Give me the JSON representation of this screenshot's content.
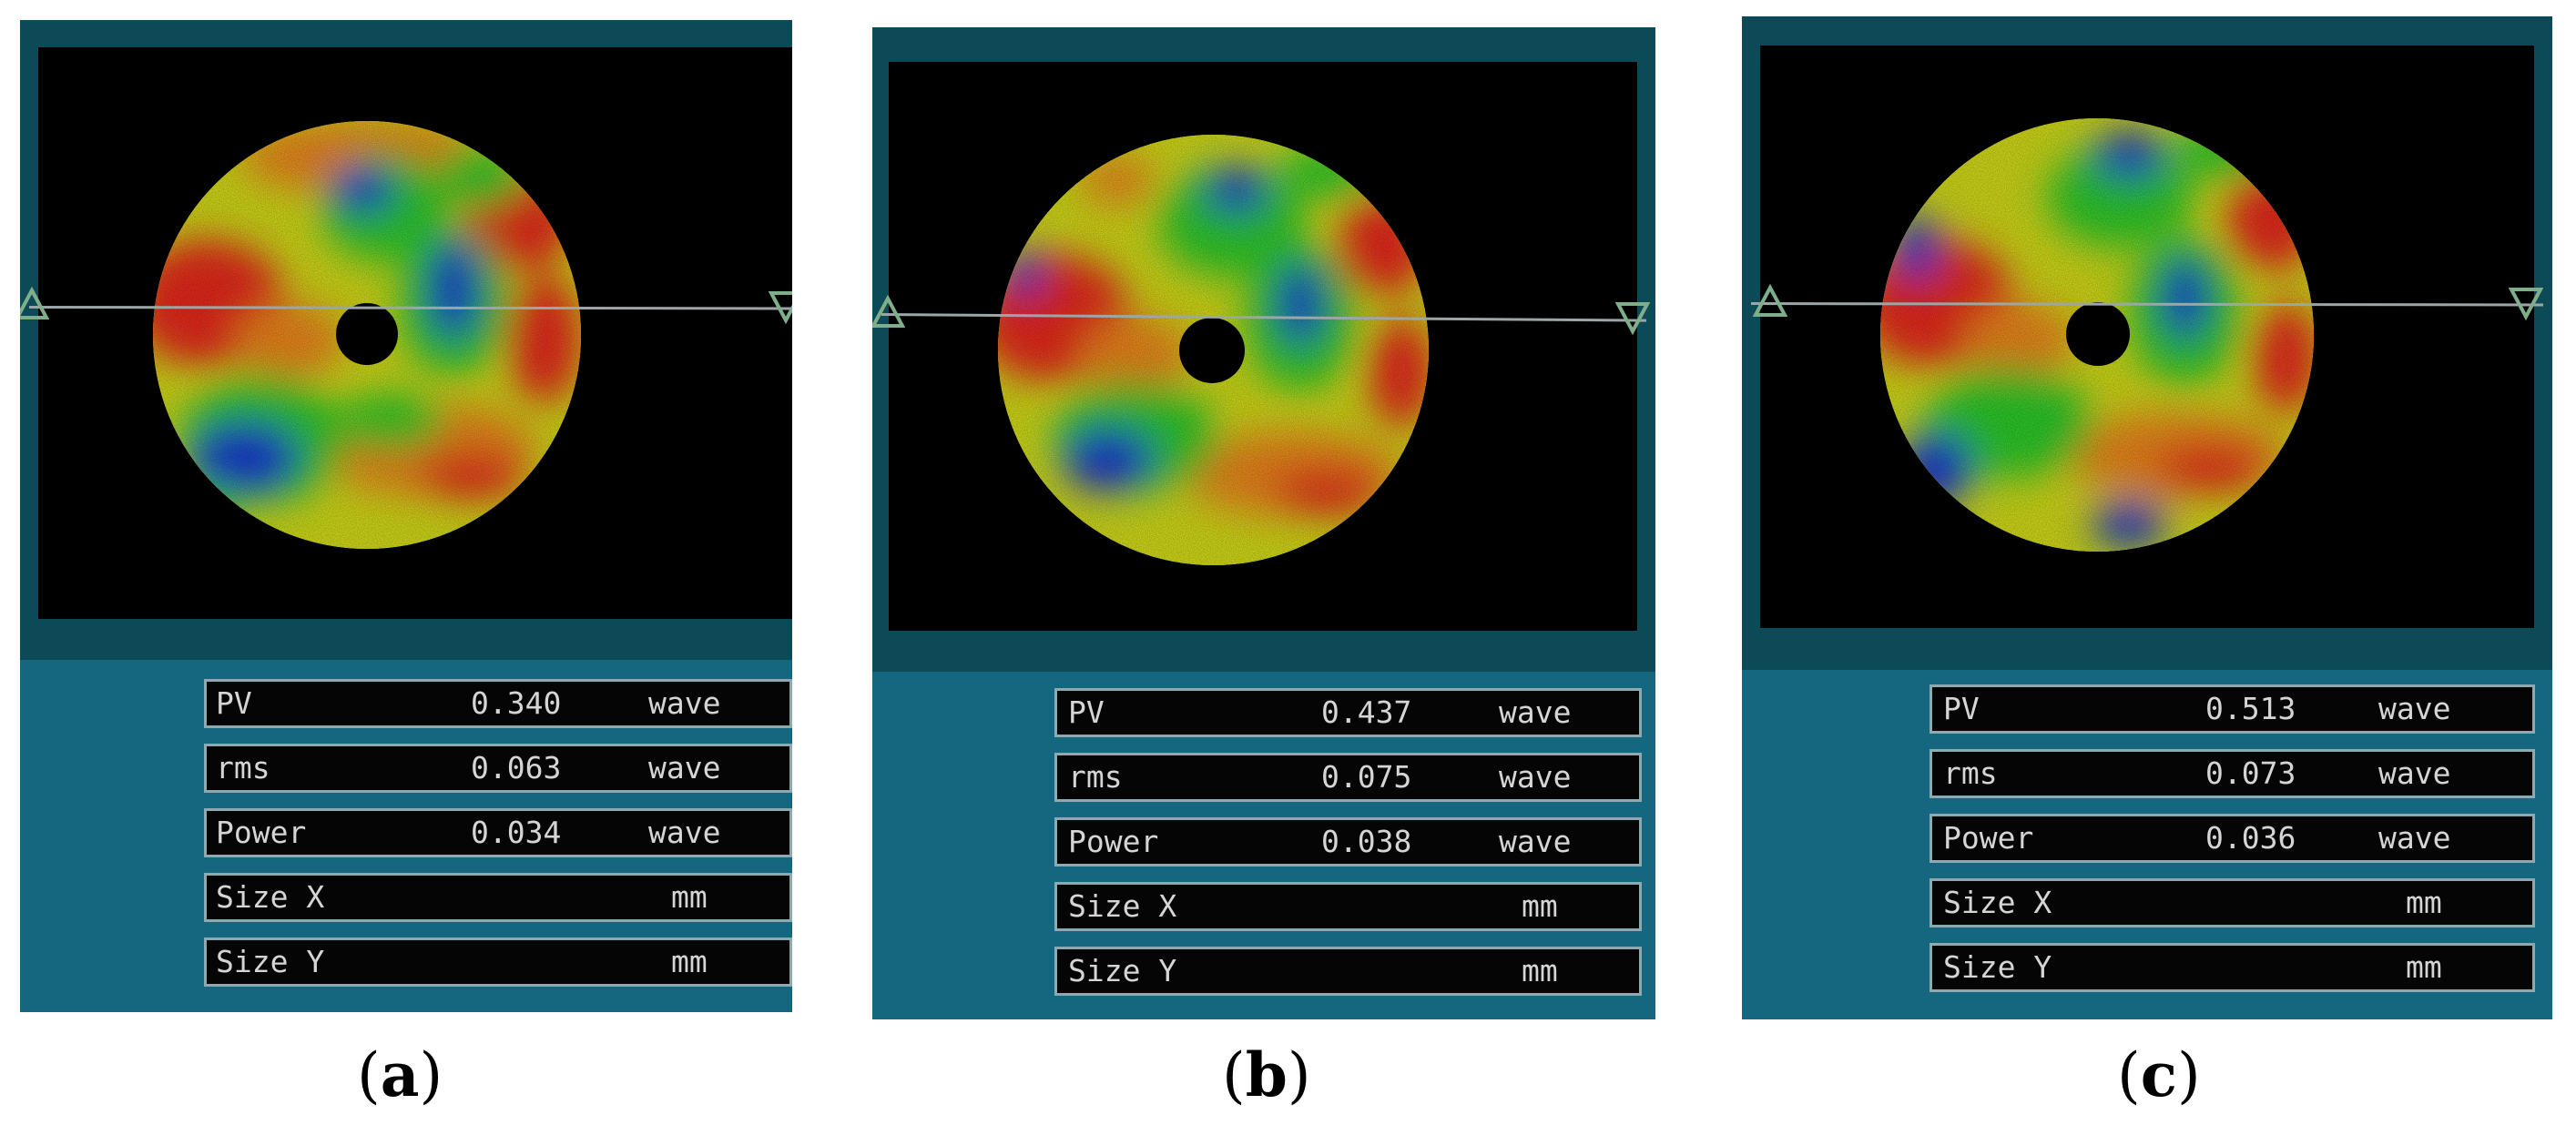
{
  "panels": [
    {
      "caption_letter": "a",
      "rows": [
        {
          "name": "PV",
          "value": "0.340",
          "unit": "wave"
        },
        {
          "name": "rms",
          "value": "0.063",
          "unit": "wave"
        },
        {
          "name": "Power",
          "value": "0.034",
          "unit": "wave"
        },
        {
          "name": "Size X",
          "value": "",
          "unit": "mm"
        },
        {
          "name": "Size Y",
          "value": "",
          "unit": "mm"
        }
      ]
    },
    {
      "caption_letter": "b",
      "rows": [
        {
          "name": "PV",
          "value": "0.437",
          "unit": "wave"
        },
        {
          "name": "rms",
          "value": "0.075",
          "unit": "wave"
        },
        {
          "name": "Power",
          "value": "0.038",
          "unit": "wave"
        },
        {
          "name": "Size X",
          "value": "",
          "unit": "mm"
        },
        {
          "name": "Size Y",
          "value": "",
          "unit": "mm"
        }
      ]
    },
    {
      "caption_letter": "c",
      "rows": [
        {
          "name": "PV",
          "value": "0.513",
          "unit": "wave"
        },
        {
          "name": "rms",
          "value": "0.073",
          "unit": "wave"
        },
        {
          "name": "Power",
          "value": "0.036",
          "unit": "wave"
        },
        {
          "name": "Size X",
          "value": "",
          "unit": "mm"
        },
        {
          "name": "Size Y",
          "value": "",
          "unit": "mm"
        }
      ]
    }
  ],
  "colors": {
    "frame": "#0d4a58",
    "data_area": "#14677e",
    "map_red": "#ef2a1c",
    "map_orange": "#f48a1c",
    "map_yellow": "#d9e21a",
    "map_green": "#2ed12a",
    "map_blue": "#1e3bd6"
  },
  "icons": {
    "left_marker": "triangle-up-icon",
    "right_marker": "triangle-down-icon"
  }
}
